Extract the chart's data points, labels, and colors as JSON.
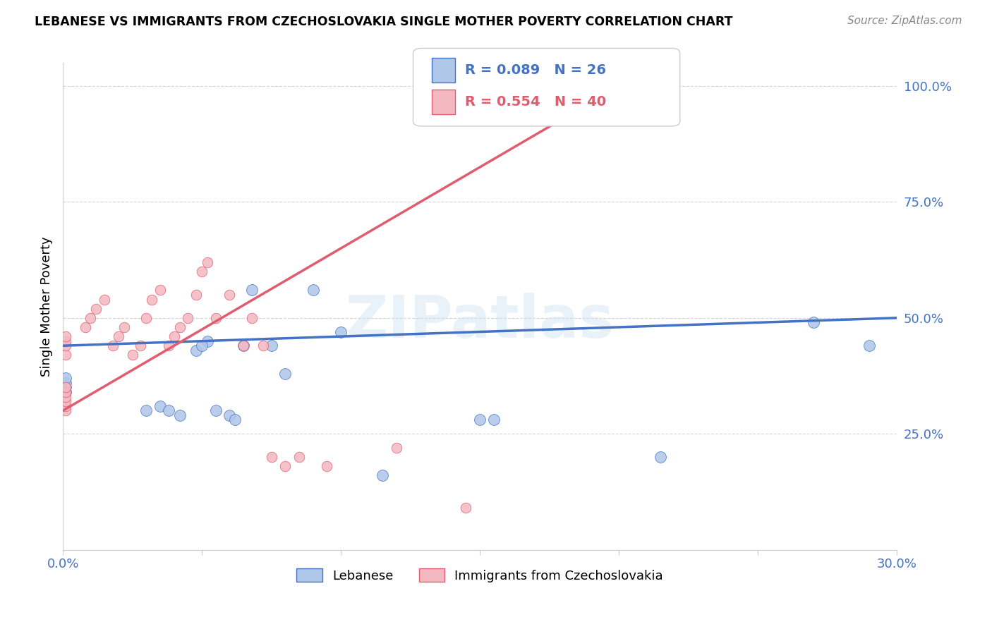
{
  "title": "LEBANESE VS IMMIGRANTS FROM CZECHOSLOVAKIA SINGLE MOTHER POVERTY CORRELATION CHART",
  "source": "Source: ZipAtlas.com",
  "ylabel": "Single Mother Poverty",
  "x_min": 0.0,
  "x_max": 0.3,
  "y_min": 0.0,
  "y_max": 1.05,
  "grid_color": "#d0d0d0",
  "background_color": "#ffffff",
  "lebanese_color": "#aec6e8",
  "czech_color": "#f4b8c1",
  "lebanese_line_color": "#4472c4",
  "czech_line_color": "#e05c6e",
  "lebanese_R": 0.089,
  "lebanese_N": 26,
  "czech_R": 0.554,
  "czech_N": 40,
  "legend_label1": "Lebanese",
  "legend_label2": "Immigrants from Czechoslovakia",
  "watermark": "ZIPatlas",
  "lebanese_x": [
    0.001,
    0.001,
    0.001,
    0.001,
    0.03,
    0.035,
    0.038,
    0.042,
    0.048,
    0.052,
    0.055,
    0.06,
    0.065,
    0.068,
    0.075,
    0.08,
    0.09,
    0.1,
    0.115,
    0.155,
    0.215,
    0.27,
    0.29,
    0.05,
    0.062,
    0.15
  ],
  "lebanese_y": [
    0.34,
    0.35,
    0.36,
    0.37,
    0.3,
    0.31,
    0.3,
    0.29,
    0.43,
    0.45,
    0.3,
    0.29,
    0.44,
    0.56,
    0.44,
    0.38,
    0.56,
    0.47,
    0.16,
    0.28,
    0.2,
    0.49,
    0.44,
    0.44,
    0.28,
    0.28
  ],
  "czech_x": [
    0.001,
    0.001,
    0.001,
    0.001,
    0.001,
    0.001,
    0.001,
    0.001,
    0.001,
    0.001,
    0.008,
    0.01,
    0.012,
    0.015,
    0.018,
    0.02,
    0.022,
    0.025,
    0.028,
    0.03,
    0.032,
    0.035,
    0.038,
    0.04,
    0.042,
    0.045,
    0.048,
    0.05,
    0.052,
    0.055,
    0.06,
    0.065,
    0.068,
    0.072,
    0.075,
    0.08,
    0.085,
    0.095,
    0.12,
    0.145
  ],
  "czech_y": [
    0.3,
    0.31,
    0.32,
    0.33,
    0.34,
    0.35,
    0.42,
    0.44,
    0.45,
    0.46,
    0.48,
    0.5,
    0.52,
    0.54,
    0.44,
    0.46,
    0.48,
    0.42,
    0.44,
    0.5,
    0.54,
    0.56,
    0.44,
    0.46,
    0.48,
    0.5,
    0.55,
    0.6,
    0.62,
    0.5,
    0.55,
    0.44,
    0.5,
    0.44,
    0.2,
    0.18,
    0.2,
    0.18,
    0.22,
    0.09
  ]
}
